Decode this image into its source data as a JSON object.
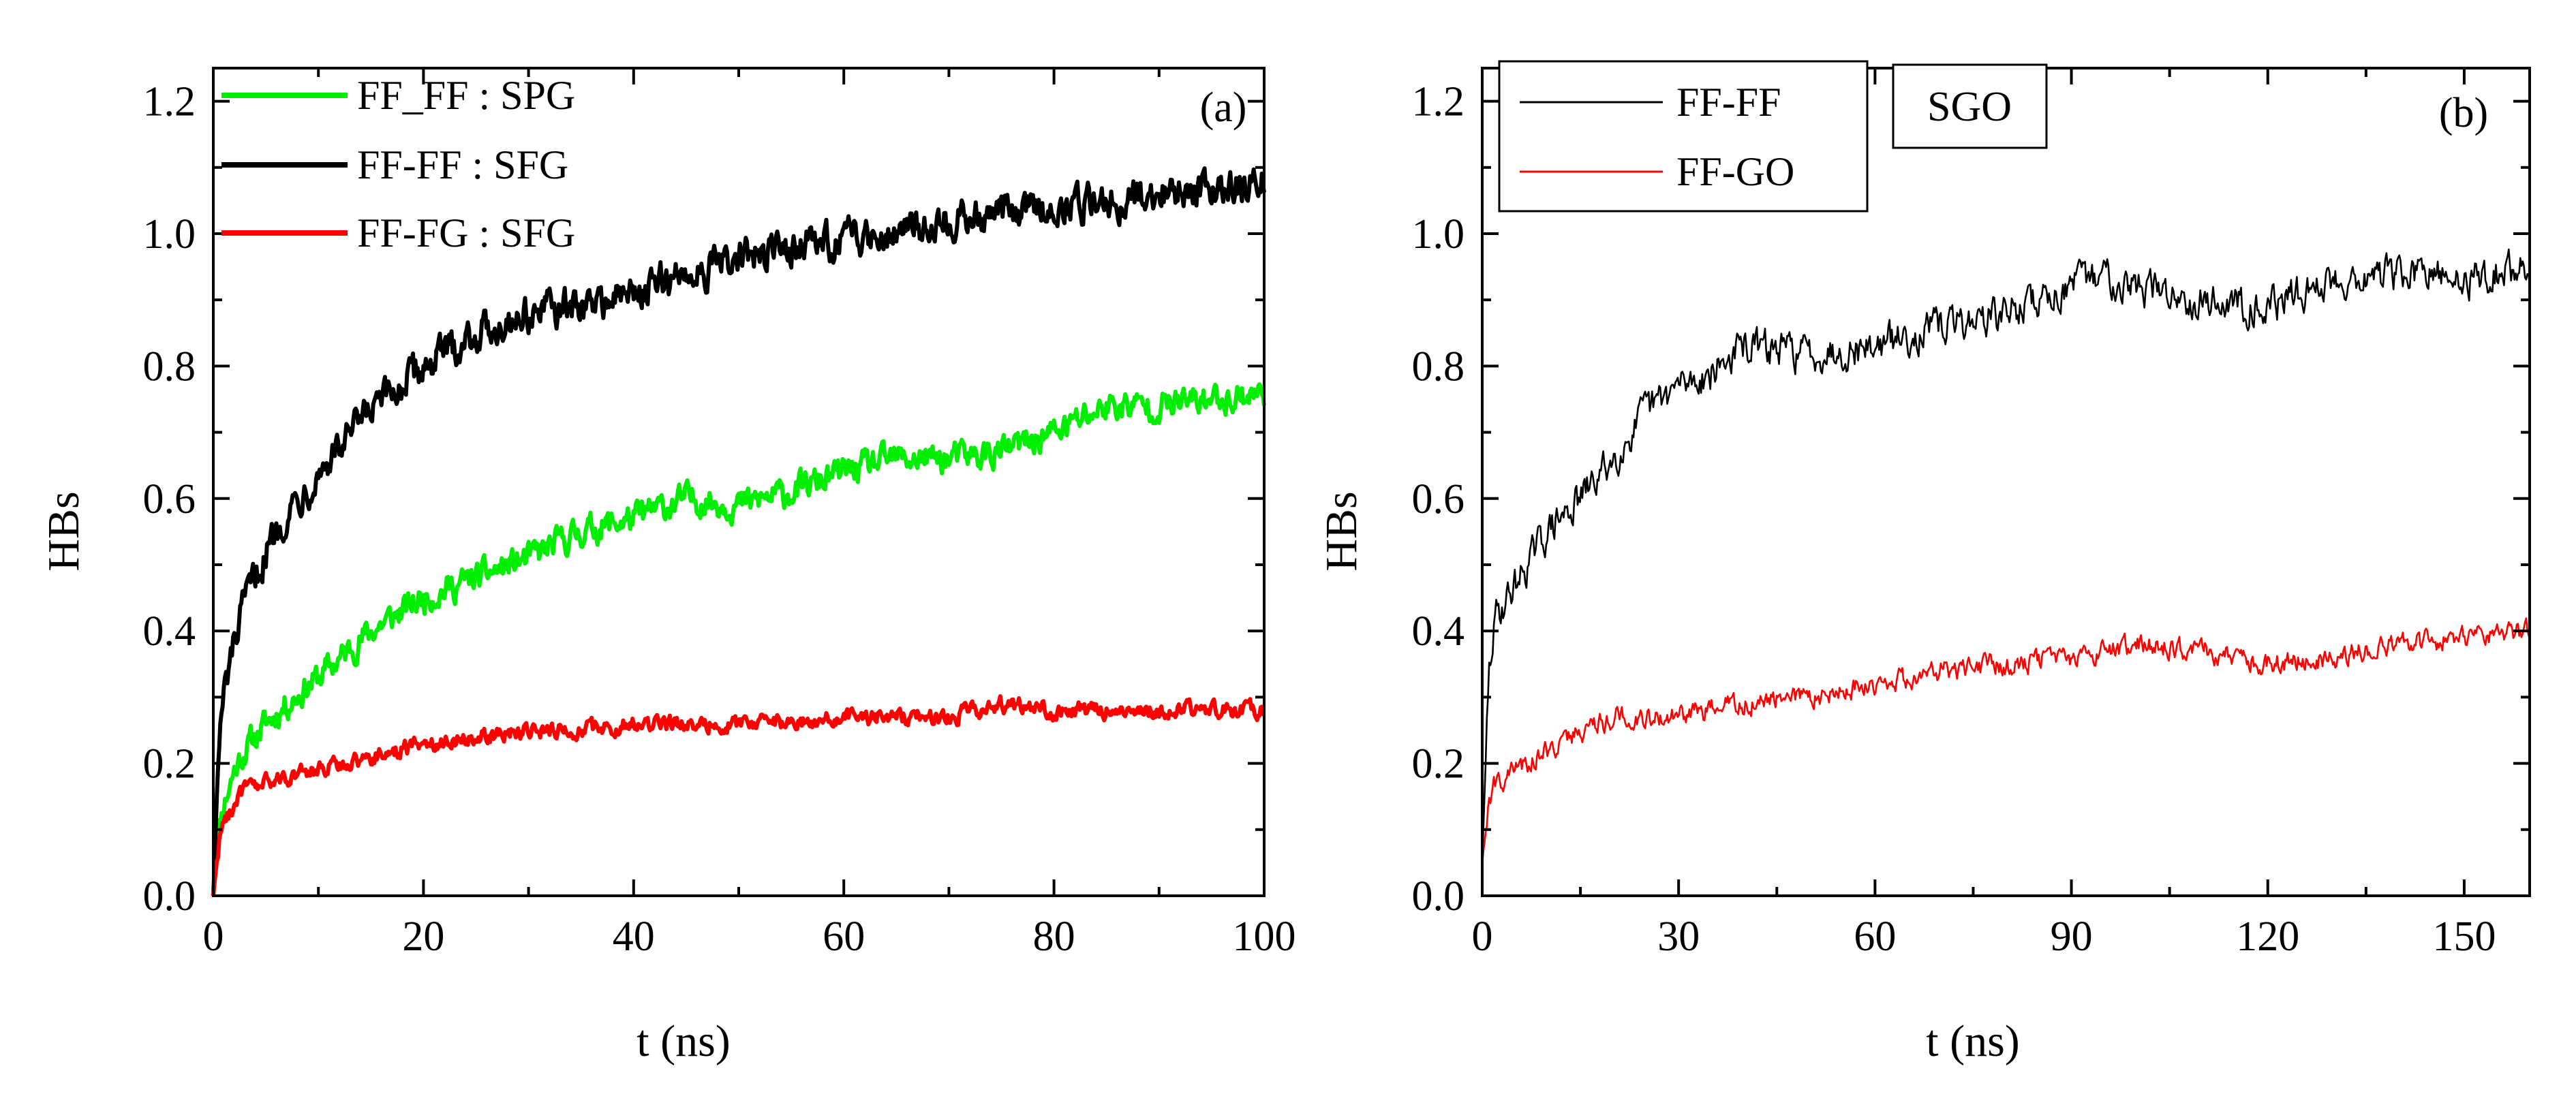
{
  "chart_data": [
    {
      "type": "line",
      "panel_label": "(a)",
      "xlabel": "t (ns)",
      "ylabel": "HBs",
      "xlim": [
        0,
        100
      ],
      "ylim": [
        0,
        1.25
      ],
      "xticks": [
        0,
        20,
        40,
        60,
        80,
        100
      ],
      "yticks": [
        0.0,
        0.2,
        0.4,
        0.6,
        0.8,
        1.0,
        1.2
      ],
      "xtick_labels": [
        "0",
        "20",
        "40",
        "60",
        "80",
        "100"
      ],
      "ytick_labels": [
        "0.0",
        "0.2",
        "0.4",
        "0.6",
        "0.8",
        "1.0",
        "1.2"
      ],
      "legend_position": "top-left",
      "series": [
        {
          "name": "FF_FF : SPG",
          "color": "#00ee00",
          "noise": 0.018,
          "x": [
            0,
            0.5,
            1,
            2,
            3,
            5,
            7,
            10,
            15,
            20,
            25,
            30,
            35,
            40,
            45,
            50,
            55,
            60,
            65,
            70,
            75,
            80,
            85,
            90,
            95,
            100
          ],
          "y": [
            0.0,
            0.1,
            0.14,
            0.19,
            0.22,
            0.26,
            0.29,
            0.33,
            0.4,
            0.45,
            0.48,
            0.51,
            0.55,
            0.57,
            0.6,
            0.59,
            0.61,
            0.64,
            0.66,
            0.66,
            0.67,
            0.7,
            0.74,
            0.74,
            0.75,
            0.76
          ]
        },
        {
          "name": "FF-FF : SFG",
          "color": "#000000",
          "noise": 0.022,
          "x": [
            0,
            0.5,
            1,
            2,
            3,
            5,
            7,
            10,
            15,
            20,
            25,
            30,
            35,
            40,
            45,
            50,
            55,
            60,
            65,
            70,
            75,
            80,
            85,
            90,
            95,
            100
          ],
          "y": [
            0.0,
            0.22,
            0.3,
            0.38,
            0.44,
            0.52,
            0.58,
            0.64,
            0.73,
            0.8,
            0.85,
            0.88,
            0.89,
            0.91,
            0.94,
            0.96,
            0.98,
            0.99,
            1.01,
            1.02,
            1.03,
            1.04,
            1.05,
            1.06,
            1.07,
            1.08
          ]
        },
        {
          "name": "FF-FG : SFG",
          "color": "#ff0000",
          "noise": 0.01,
          "x": [
            0,
            0.5,
            1,
            2,
            3,
            5,
            7,
            10,
            15,
            20,
            25,
            30,
            35,
            40,
            45,
            50,
            55,
            60,
            65,
            70,
            75,
            80,
            85,
            90,
            95,
            100
          ],
          "y": [
            0.0,
            0.08,
            0.11,
            0.14,
            0.16,
            0.17,
            0.18,
            0.19,
            0.21,
            0.23,
            0.24,
            0.25,
            0.25,
            0.26,
            0.26,
            0.26,
            0.26,
            0.27,
            0.27,
            0.27,
            0.29,
            0.28,
            0.28,
            0.28,
            0.28,
            0.28
          ]
        }
      ]
    },
    {
      "type": "line",
      "panel_label": "(b)",
      "box_label": "SGO",
      "xlabel": "t (ns)",
      "ylabel": "HBs",
      "xlim": [
        0,
        160
      ],
      "ylim": [
        0,
        1.25
      ],
      "xticks": [
        0,
        30,
        60,
        90,
        120,
        150
      ],
      "yticks": [
        0.0,
        0.2,
        0.4,
        0.6,
        0.8,
        1.0,
        1.2
      ],
      "xtick_labels": [
        "0",
        "30",
        "60",
        "90",
        "120",
        "150"
      ],
      "ytick_labels": [
        "0.0",
        "0.2",
        "0.4",
        "0.6",
        "0.8",
        "1.0",
        "1.2"
      ],
      "legend_position": "top-left",
      "series": [
        {
          "name": "FF-FF",
          "color": "#000000",
          "noise": 0.022,
          "x": [
            0,
            1,
            2,
            5,
            10,
            15,
            20,
            25,
            30,
            35,
            40,
            50,
            60,
            70,
            80,
            90,
            95,
            100,
            110,
            120,
            130,
            140,
            150,
            155,
            160
          ],
          "y": [
            0.05,
            0.33,
            0.42,
            0.47,
            0.55,
            0.6,
            0.66,
            0.73,
            0.77,
            0.79,
            0.83,
            0.82,
            0.83,
            0.86,
            0.88,
            0.92,
            0.94,
            0.92,
            0.9,
            0.89,
            0.93,
            0.94,
            0.93,
            0.94,
            0.95
          ]
        },
        {
          "name": "FF-GO",
          "color": "#ff0000",
          "noise": 0.013,
          "x": [
            0,
            1,
            2,
            5,
            10,
            15,
            20,
            30,
            40,
            50,
            60,
            70,
            80,
            90,
            100,
            110,
            120,
            130,
            140,
            150,
            160
          ],
          "y": [
            0.05,
            0.14,
            0.17,
            0.19,
            0.22,
            0.25,
            0.27,
            0.27,
            0.29,
            0.3,
            0.32,
            0.34,
            0.35,
            0.36,
            0.38,
            0.37,
            0.35,
            0.36,
            0.38,
            0.39,
            0.4
          ]
        }
      ]
    }
  ]
}
